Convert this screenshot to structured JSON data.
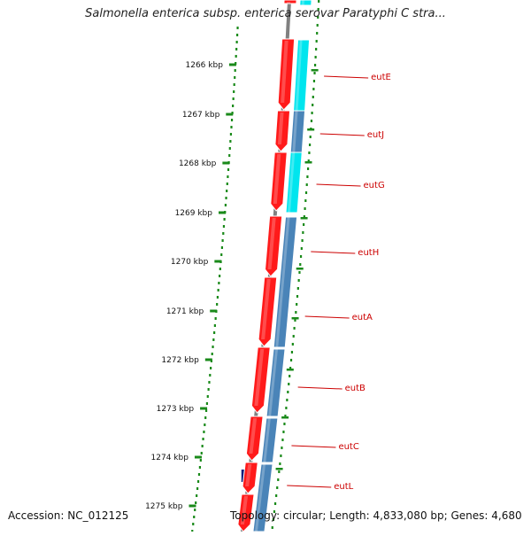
{
  "title": "Salmonella enterica subsp. enterica serovar Paratyphi C stra...",
  "footer": {
    "accession": "Accession: NC_012125",
    "topology": "Topology: circular; Length: 4,833,080 bp; Genes: 4,680"
  },
  "ticks": [
    "1266 kbp",
    "1267 kbp",
    "1268 kbp",
    "1269 kbp",
    "1270 kbp",
    "1271 kbp",
    "1272 kbp",
    "1273 kbp",
    "1274 kbp",
    "1275 kbp"
  ],
  "genes": [
    "eutE",
    "eutJ",
    "eutG",
    "eutH",
    "eutA",
    "eutB",
    "eutC",
    "eutL"
  ],
  "colors": {
    "feature_red": "#ff1a1a",
    "blast_light": "#00e5ee",
    "blast_steel": "#4a84b8",
    "backbone": "#808080",
    "ruler_green": "#1a8a1a",
    "label_red": "#cc0000"
  }
}
